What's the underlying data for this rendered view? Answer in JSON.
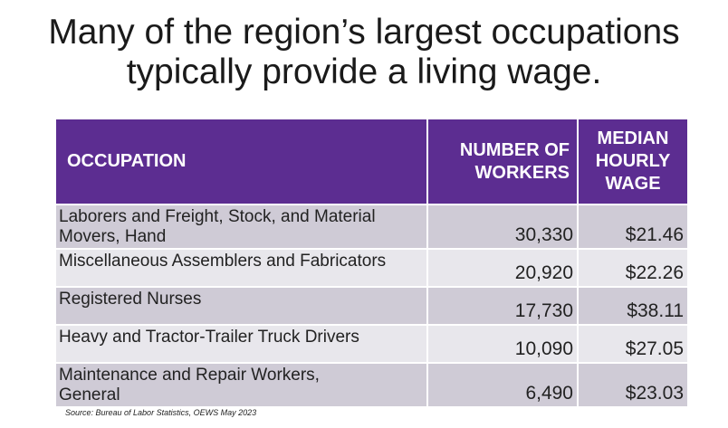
{
  "title": {
    "line1": "Many of the region’s largest occupations",
    "line2": "typically provide a living wage."
  },
  "table": {
    "headers": {
      "occupation": "OCCUPATION",
      "workers_line1": "NUMBER OF",
      "workers_line2": "WORKERS",
      "wage_line1": "MEDIAN",
      "wage_line2": "HOURLY",
      "wage_line3": "WAGE"
    },
    "rows": [
      {
        "occupation_line1": "Laborers and Freight, Stock, and Material",
        "occupation_line2": "Movers, Hand",
        "workers": "30,330",
        "wage": "$21.46"
      },
      {
        "occupation_line1": "Miscellaneous Assemblers and Fabricators",
        "occupation_line2": "",
        "workers": "20,920",
        "wage": "$22.26"
      },
      {
        "occupation_line1": "Registered Nurses",
        "occupation_line2": "",
        "workers": "17,730",
        "wage": "$38.11"
      },
      {
        "occupation_line1": "Heavy and Tractor-Trailer Truck Drivers",
        "occupation_line2": "",
        "workers": "10,090",
        "wage": "$27.05"
      },
      {
        "occupation_line1": "Maintenance and Repair Workers,",
        "occupation_line2": "General",
        "workers": "6,490",
        "wage": "$23.03"
      }
    ]
  },
  "source": "Source: Bureau of Labor Statistics, OEWS May 2023",
  "colors": {
    "header_bg": "#5c2d91",
    "row_odd": "#cfcbd6",
    "row_even": "#e8e7ec"
  }
}
